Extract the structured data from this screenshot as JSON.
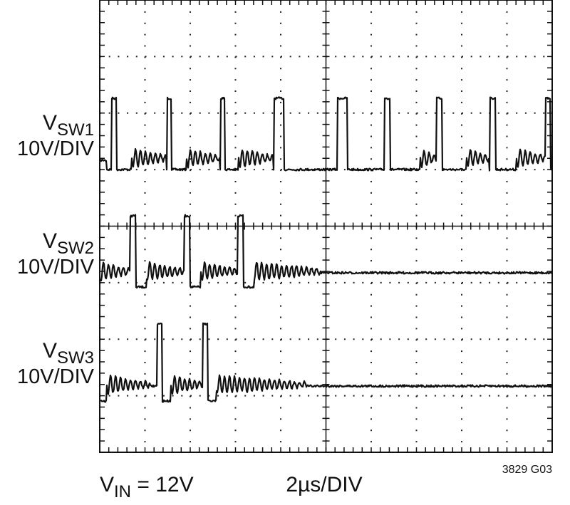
{
  "traces": [
    {
      "name": {
        "main": "V",
        "sub": "SW1"
      },
      "scale": "10V/DIV"
    },
    {
      "name": {
        "main": "V",
        "sub": "SW2"
      },
      "scale": "10V/DIV"
    },
    {
      "name": {
        "main": "V",
        "sub": "SW3"
      },
      "scale": "10V/DIV"
    }
  ],
  "footer": {
    "input": {
      "main": "V",
      "sub": "IN",
      "rest": " = 12V"
    },
    "timebase": "2µs/DIV",
    "figure_id": "3829 G03"
  }
}
